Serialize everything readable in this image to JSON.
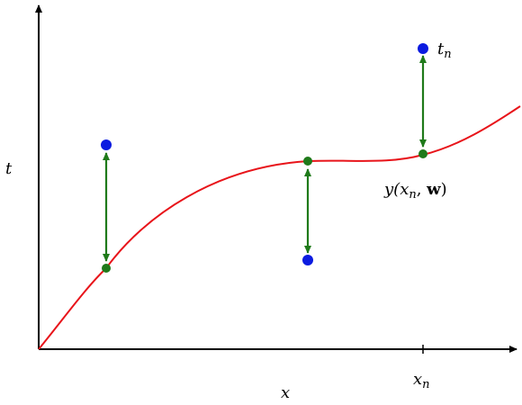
{
  "colors": {
    "curve": "#e8141a",
    "target_point": "#0b1be0",
    "model_point": "#1f7a1a",
    "error_arrow": "#1f7a1a",
    "axis": "#000000"
  },
  "axes": {
    "x_label": "x",
    "t_label": "t",
    "tick_label": {
      "base": "x",
      "sub": "n"
    }
  },
  "annotations": {
    "target_label": {
      "base": "t",
      "sub": "n"
    },
    "model_label": {
      "prefix": "y(x",
      "sub": "n",
      "sep": ", ",
      "bold": "w",
      "suffix": ")"
    }
  },
  "points": [
    {
      "name": "point-1",
      "target_above_curve": true
    },
    {
      "name": "point-2",
      "target_above_curve": false
    },
    {
      "name": "point-3",
      "target_above_curve": true,
      "labelled": true
    }
  ]
}
